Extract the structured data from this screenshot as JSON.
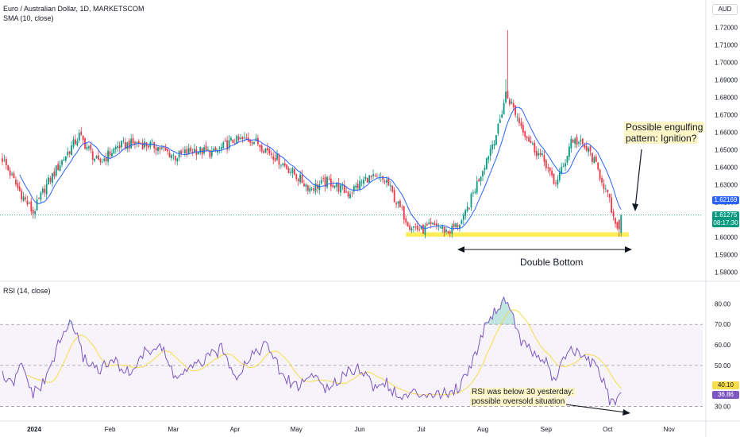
{
  "header": {
    "title": "Euro / Australian Dollar, 1D, MARKETSCOM",
    "sma_label": "SMA (10, close)",
    "rsi_label": "RSI (14, close)",
    "currency": "AUD"
  },
  "price_axis": {
    "ticks": [
      "1.72000",
      "1.71000",
      "1.70000",
      "1.69000",
      "1.68000",
      "1.67000",
      "1.66000",
      "1.65000",
      "1.64000",
      "1.63000",
      "1.62000",
      "1.61000",
      "1.60000",
      "1.59000",
      "1.58000"
    ],
    "current_price": "1.61275",
    "countdown": "08:17:30",
    "sma_value": "1.62169"
  },
  "rsi_axis": {
    "ticks": [
      "80.00",
      "70.00",
      "60.00",
      "50.00",
      "40.00",
      "30.00"
    ],
    "rsi_ma_value": "40.10",
    "rsi_value": "36.86"
  },
  "time_axis": [
    "2024",
    "Feb",
    "Mar",
    "Apr",
    "May",
    "Jun",
    "Jul",
    "Aug",
    "Sep",
    "Oct",
    "Nov"
  ],
  "annotations": {
    "engulfing_line1": "Possible engulfing",
    "engulfing_line2": "pattern: Ignition?",
    "double_bottom": "Double Bottom",
    "rsi_note_line1": "RSI was below 30 yesterday:",
    "rsi_note_line2": "possible oversold situation"
  },
  "colors": {
    "up": "#089981",
    "down": "#f23645",
    "sma": "#2962ff",
    "rsi": "#7e57c2",
    "rsi_ma": "#f7dc4c",
    "support_zone": "#ffeb3b"
  },
  "chart_data": [
    {
      "type": "candlestick",
      "title": "Euro / Australian Dollar, 1D, MARKETSCOM",
      "ylim": [
        1.578,
        1.722
      ],
      "x_labels": [
        "2024",
        "Feb",
        "Mar",
        "Apr",
        "May",
        "Jun",
        "Jul",
        "Aug",
        "Sep",
        "Oct",
        "Nov"
      ],
      "close_key_points": [
        [
          0,
          1.645
        ],
        [
          8,
          1.628
        ],
        [
          16,
          1.614
        ],
        [
          22,
          1.628
        ],
        [
          30,
          1.642
        ],
        [
          40,
          1.658
        ],
        [
          50,
          1.642
        ],
        [
          60,
          1.652
        ],
        [
          70,
          1.654
        ],
        [
          80,
          1.652
        ],
        [
          90,
          1.646
        ],
        [
          100,
          1.65
        ],
        [
          110,
          1.648
        ],
        [
          120,
          1.655
        ],
        [
          130,
          1.656
        ],
        [
          140,
          1.648
        ],
        [
          150,
          1.638
        ],
        [
          160,
          1.628
        ],
        [
          170,
          1.632
        ],
        [
          180,
          1.625
        ],
        [
          190,
          1.634
        ],
        [
          200,
          1.632
        ],
        [
          205,
          1.62
        ],
        [
          212,
          1.607
        ],
        [
          218,
          1.604
        ],
        [
          226,
          1.607
        ],
        [
          232,
          1.603
        ],
        [
          240,
          1.61
        ],
        [
          246,
          1.628
        ],
        [
          252,
          1.645
        ],
        [
          258,
          1.662
        ],
        [
          262,
          1.682
        ],
        [
          265,
          1.676
        ],
        [
          270,
          1.664
        ],
        [
          276,
          1.652
        ],
        [
          283,
          1.642
        ],
        [
          287,
          1.63
        ],
        [
          292,
          1.64
        ],
        [
          296,
          1.656
        ],
        [
          300,
          1.654
        ],
        [
          306,
          1.648
        ],
        [
          312,
          1.633
        ],
        [
          316,
          1.62
        ],
        [
          319,
          1.605
        ],
        [
          322,
          1.612
        ]
      ],
      "series": [
        {
          "name": "SMA (10, close)",
          "last_value": 1.62169
        }
      ],
      "support_zone": [
        1.6003,
        1.6028
      ],
      "last_price": 1.61275
    },
    {
      "type": "line",
      "title": "RSI (14, close)",
      "ylim": [
        26,
        84
      ],
      "levels": [
        70,
        50,
        30
      ],
      "rsi_key_points": [
        [
          0,
          45
        ],
        [
          5,
          40
        ],
        [
          10,
          50
        ],
        [
          16,
          36
        ],
        [
          22,
          42
        ],
        [
          30,
          62
        ],
        [
          36,
          72
        ],
        [
          42,
          54
        ],
        [
          50,
          48
        ],
        [
          58,
          52
        ],
        [
          66,
          46
        ],
        [
          74,
          56
        ],
        [
          82,
          60
        ],
        [
          90,
          44
        ],
        [
          98,
          48
        ],
        [
          106,
          53
        ],
        [
          114,
          58
        ],
        [
          122,
          45
        ],
        [
          130,
          56
        ],
        [
          138,
          60
        ],
        [
          146,
          44
        ],
        [
          154,
          40
        ],
        [
          162,
          46
        ],
        [
          170,
          37
        ],
        [
          178,
          47
        ],
        [
          186,
          49
        ],
        [
          194,
          39
        ],
        [
          200,
          42
        ],
        [
          206,
          34
        ],
        [
          214,
          36
        ],
        [
          222,
          37
        ],
        [
          230,
          36
        ],
        [
          238,
          40
        ],
        [
          246,
          55
        ],
        [
          252,
          72
        ],
        [
          258,
          78
        ],
        [
          262,
          83
        ],
        [
          265,
          76
        ],
        [
          270,
          62
        ],
        [
          276,
          56
        ],
        [
          283,
          52
        ],
        [
          287,
          42
        ],
        [
          292,
          52
        ],
        [
          296,
          60
        ],
        [
          300,
          54
        ],
        [
          306,
          52
        ],
        [
          312,
          44
        ],
        [
          316,
          33
        ],
        [
          319,
          30
        ],
        [
          322,
          37
        ]
      ],
      "last_rsi": 36.86,
      "last_rsi_ma": 40.1
    }
  ]
}
